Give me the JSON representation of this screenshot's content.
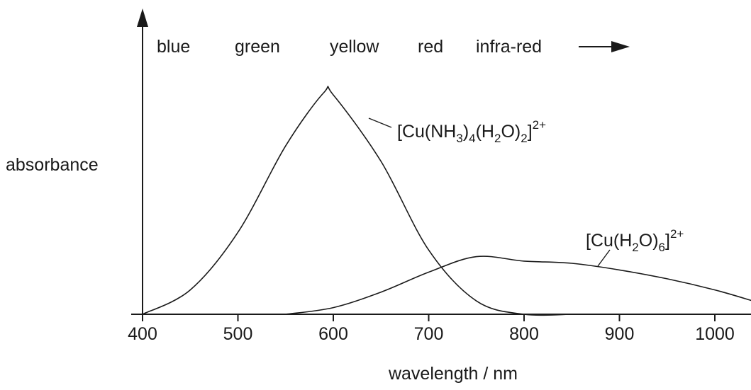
{
  "chart_data": {
    "type": "line",
    "title": "",
    "xlabel": "wavelength / nm",
    "ylabel": "absorbance",
    "xlim": [
      400,
      1040
    ],
    "x_ticks": [
      400,
      500,
      600,
      700,
      800,
      900,
      1000
    ],
    "y_ticks": [],
    "grid": false,
    "colour_band_labels": {
      "blue": "blue",
      "green": "green",
      "yellow": "yellow",
      "red": "red",
      "infrared": "infra-red"
    },
    "series": [
      {
        "name": "[Cu(NH3)4(H2O)2]2+",
        "label_parts": [
          {
            "text": "[Cu(NH",
            "sub": false
          },
          {
            "text": "3",
            "sub": true
          },
          {
            "text": ")",
            "sub": false
          },
          {
            "text": "4",
            "sub": true
          },
          {
            "text": "(H",
            "sub": false
          },
          {
            "text": "2",
            "sub": true
          },
          {
            "text": "O)",
            "sub": false
          },
          {
            "text": "2",
            "sub": true
          },
          {
            "text": "]",
            "sub": false
          },
          {
            "text": "2+",
            "sup": true
          }
        ],
        "x": [
          400,
          450,
          500,
          550,
          590,
          600,
          650,
          700,
          750,
          800,
          850
        ],
        "y": [
          0.0,
          0.11,
          0.37,
          0.76,
          1.0,
          0.99,
          0.69,
          0.29,
          0.06,
          0.0,
          0.0
        ]
      },
      {
        "name": "[Cu(H2O)6]2+",
        "label_parts": [
          {
            "text": "[Cu(H",
            "sub": false
          },
          {
            "text": "2",
            "sub": true
          },
          {
            "text": "O)",
            "sub": false
          },
          {
            "text": "6",
            "sub": true
          },
          {
            "text": "]",
            "sub": false
          },
          {
            "text": "2+",
            "sup": true
          }
        ],
        "x": [
          550,
          600,
          650,
          700,
          750,
          800,
          850,
          900,
          950,
          1000,
          1040
        ],
        "y": [
          0.0,
          0.03,
          0.1,
          0.19,
          0.26,
          0.24,
          0.23,
          0.2,
          0.16,
          0.11,
          0.06
        ]
      }
    ]
  },
  "colors": {
    "ink": "#1a1a1a",
    "background": "#ffffff"
  }
}
